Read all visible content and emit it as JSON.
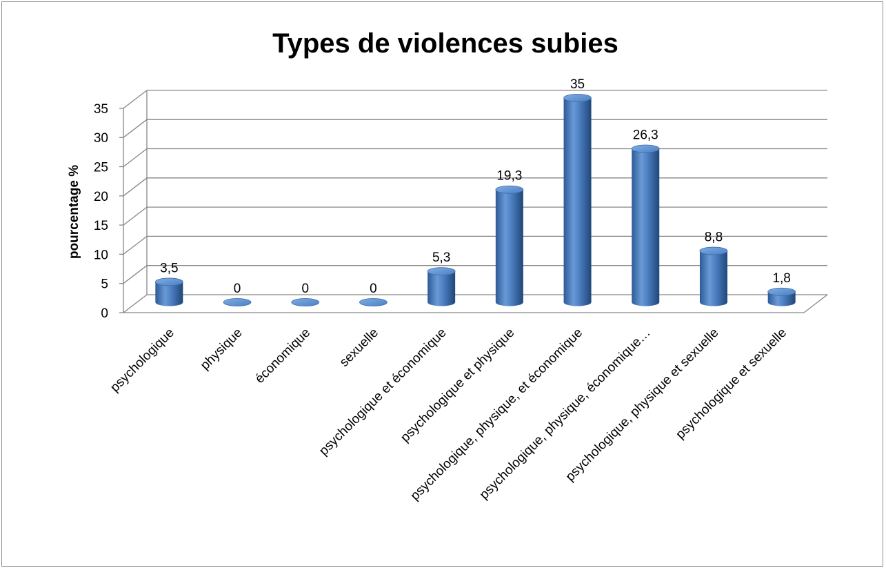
{
  "chart_data": {
    "type": "bar",
    "style": "3d-cylinder",
    "title": "Types de violences subies",
    "ylabel": "pourcentage %",
    "xlabel": "",
    "ylim": [
      0,
      35
    ],
    "yticks": [
      0,
      5,
      10,
      15,
      20,
      25,
      30,
      35
    ],
    "grid": true,
    "legend": "none",
    "bar_color": "#4a7ebf",
    "categories": [
      "psychologique",
      "physique",
      "économique",
      "sexuelle",
      "psychologique et économique",
      "psychologique et physique",
      "psychologique, physique, et économique",
      "psychologique, physique, économique…",
      "psychologique, physique et sexuelle",
      "psychologique et sexuelle"
    ],
    "values": [
      3.5,
      0,
      0,
      0,
      5.3,
      19.3,
      35,
      26.3,
      8.8,
      1.8
    ],
    "data_labels": [
      "3,5",
      "0",
      "0",
      "0",
      "5,3",
      "19,3",
      "35",
      "26,3",
      "8,8",
      "1,8"
    ]
  }
}
